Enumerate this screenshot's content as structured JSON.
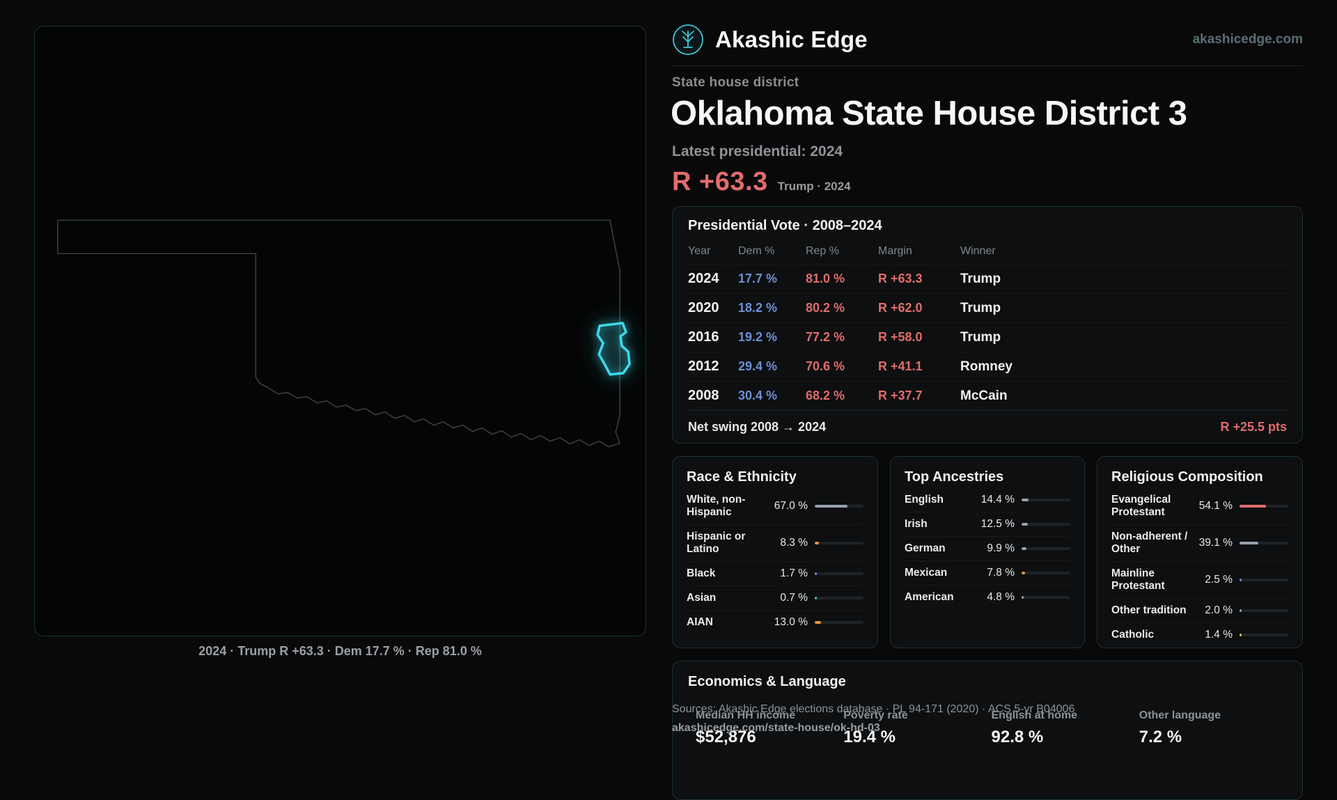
{
  "header": {
    "brand": "Akashic Edge",
    "site": "akashicedge.com"
  },
  "hero": {
    "kicker": "State house district",
    "title": "Oklahoma State House District 3",
    "latest": "Latest presidential: 2024",
    "margin": "R +63.3",
    "margin_note": "Trump · 2024"
  },
  "map": {
    "caption": "2024 · Trump R +63.3 · Dem 17.7 % · Rep 81.0 %",
    "district_color": "#3fd9ec"
  },
  "presidential": {
    "title": "Presidential Vote · 2008–2024",
    "columns": [
      "Year",
      "Dem %",
      "Rep %",
      "Margin",
      "Winner"
    ],
    "rows": [
      {
        "year": "2024",
        "dem": "17.7 %",
        "rep": "81.0 %",
        "margin": "R +63.3",
        "winner": "Trump"
      },
      {
        "year": "2020",
        "dem": "18.2 %",
        "rep": "80.2 %",
        "margin": "R +62.0",
        "winner": "Trump"
      },
      {
        "year": "2016",
        "dem": "19.2 %",
        "rep": "77.2 %",
        "margin": "R +58.0",
        "winner": "Trump"
      },
      {
        "year": "2012",
        "dem": "29.4 %",
        "rep": "70.6 %",
        "margin": "R +41.1",
        "winner": "Romney"
      },
      {
        "year": "2008",
        "dem": "30.4 %",
        "rep": "68.2 %",
        "margin": "R +37.7",
        "winner": "McCain"
      }
    ],
    "net_swing_label": "Net swing 2008 → 2024",
    "net_swing_value": "R +25.5 pts"
  },
  "race": {
    "title": "Race & Ethnicity",
    "rows": [
      {
        "label": "White, non-Hispanic",
        "value": "67.0 %",
        "pct": 67.0,
        "color": "#98a0ae"
      },
      {
        "label": "Hispanic or Latino",
        "value": "8.3 %",
        "pct": 8.3,
        "color": "#e2973c"
      },
      {
        "label": "Black",
        "value": "1.7 %",
        "pct": 1.7,
        "color": "#6c8fd6"
      },
      {
        "label": "Asian",
        "value": "0.7 %",
        "pct": 0.7,
        "color": "#45c795"
      },
      {
        "label": "AIAN",
        "value": "13.0 %",
        "pct": 13.0,
        "color": "#e2973c"
      }
    ]
  },
  "ancestries": {
    "title": "Top Ancestries",
    "rows": [
      {
        "label": "English",
        "value": "14.4 %",
        "pct": 14.4,
        "color": "#98a0ae"
      },
      {
        "label": "Irish",
        "value": "12.5 %",
        "pct": 12.5,
        "color": "#98a0ae"
      },
      {
        "label": "German",
        "value": "9.9 %",
        "pct": 9.9,
        "color": "#98a0ae"
      },
      {
        "label": "Mexican",
        "value": "7.8 %",
        "pct": 7.8,
        "color": "#e2973c"
      },
      {
        "label": "American",
        "value": "4.8 %",
        "pct": 4.8,
        "color": "#98a0ae"
      }
    ]
  },
  "religion": {
    "title": "Religious Composition",
    "rows": [
      {
        "label": "Evangelical Protestant",
        "value": "54.1 %",
        "pct": 54.1,
        "color": "#e26c6c"
      },
      {
        "label": "Non-adherent / Other",
        "value": "39.1 %",
        "pct": 39.1,
        "color": "#98a0ae"
      },
      {
        "label": "Mainline Protestant",
        "value": "2.5 %",
        "pct": 2.5,
        "color": "#6c8fd6"
      },
      {
        "label": "Other tradition",
        "value": "2.0 %",
        "pct": 2.0,
        "color": "#98a0ae"
      },
      {
        "label": "Catholic",
        "value": "1.4 %",
        "pct": 1.4,
        "color": "#d8c74f"
      }
    ]
  },
  "economics": {
    "title": "Economics & Language",
    "stats": [
      {
        "label": "Median HH income",
        "value": "$52,876"
      },
      {
        "label": "Poverty rate",
        "value": "19.4 %"
      },
      {
        "label": "English at home",
        "value": "92.8 %"
      },
      {
        "label": "Other language",
        "value": "7.2 %"
      }
    ]
  },
  "footer": {
    "sources": "Sources: Akashic Edge elections database · PL 94-171 (2020) · ACS 5-yr B04006",
    "permalink": "akashicedge.com/state-house/ok-hd-03"
  },
  "colors": {
    "dem": "#6c8fd6",
    "rep": "#e26c6c",
    "accent": "#3fd9ec"
  }
}
